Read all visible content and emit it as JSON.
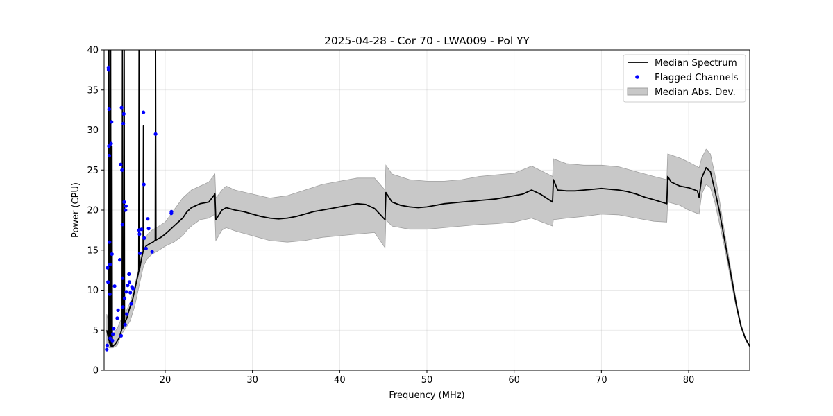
{
  "chart_data": {
    "type": "line",
    "title": "2025-04-28 - Cor 70 - LWA009 - Pol YY",
    "xlabel": "Frequency (MHz)",
    "ylabel": "Power (CPU)",
    "xlim": [
      13,
      87
    ],
    "ylim": [
      0,
      40
    ],
    "xticks": [
      20,
      30,
      40,
      50,
      60,
      70,
      80
    ],
    "yticks": [
      0,
      5,
      10,
      15,
      20,
      25,
      30,
      35,
      40
    ],
    "grid": true,
    "legend_position": "top-right",
    "colors": {
      "median": "#000000",
      "flagged": "#0000ff",
      "band_fill": "#c8c8c8",
      "band_edge": "#a0a0a0"
    },
    "series": [
      {
        "name": "Median Spectrum",
        "kind": "line",
        "x": [
          13.3,
          13.5,
          13.6,
          13.7,
          13.8,
          13.9,
          14.0,
          14.3,
          14.7,
          15.0,
          15.2,
          15.4,
          15.6,
          15.8,
          16.0,
          16.3,
          16.6,
          16.9,
          17.0,
          17.3,
          17.5,
          17.8,
          18.2,
          18.6,
          18.8,
          19.0,
          19.5,
          20.0,
          20.5,
          21.0,
          21.5,
          22.0,
          22.5,
          23.0,
          24.0,
          25.0,
          25.7,
          25.8,
          26.5,
          27.0,
          28.0,
          29.0,
          30.0,
          31.0,
          32.0,
          33.0,
          34.0,
          35.0,
          36.0,
          37.0,
          38.0,
          39.0,
          40.0,
          41.0,
          42.0,
          43.0,
          44.0,
          45.2,
          45.3,
          46.0,
          47.0,
          48.0,
          49.0,
          50.0,
          51.0,
          52.0,
          53.0,
          54.0,
          55.0,
          56.0,
          57.0,
          58.0,
          59.0,
          60.0,
          61.0,
          62.0,
          63.0,
          64.4,
          64.5,
          65.0,
          66.0,
          67.0,
          68.0,
          69.0,
          70.0,
          71.0,
          72.0,
          73.0,
          74.0,
          75.0,
          76.0,
          77.5,
          77.6,
          78.0,
          79.0,
          80.0,
          81.0,
          81.2,
          81.5,
          82.0,
          82.5,
          83.0,
          83.5,
          84.0,
          84.5,
          85.0,
          85.5,
          86.0,
          86.5,
          87.0
        ],
        "y": [
          5.0,
          4.0,
          3.5,
          3.2,
          3.0,
          3.0,
          3.0,
          3.3,
          4.0,
          5.0,
          5.5,
          6.0,
          6.5,
          7.3,
          8.0,
          9.0,
          10.5,
          12.0,
          12.5,
          14.0,
          15.0,
          15.5,
          15.8,
          16.0,
          16.2,
          16.3,
          16.6,
          17.0,
          17.5,
          18.0,
          18.5,
          19.0,
          19.8,
          20.3,
          20.8,
          21.0,
          22.0,
          18.8,
          20.0,
          20.3,
          20.0,
          19.8,
          19.5,
          19.2,
          19.0,
          18.9,
          19.0,
          19.2,
          19.5,
          19.8,
          20.0,
          20.2,
          20.4,
          20.6,
          20.8,
          20.7,
          20.2,
          18.8,
          22.2,
          21.0,
          20.6,
          20.4,
          20.3,
          20.4,
          20.6,
          20.8,
          20.9,
          21.0,
          21.1,
          21.2,
          21.3,
          21.4,
          21.6,
          21.8,
          22.0,
          22.5,
          22.0,
          21.0,
          23.8,
          22.5,
          22.4,
          22.4,
          22.5,
          22.6,
          22.7,
          22.6,
          22.5,
          22.3,
          22.0,
          21.6,
          21.3,
          20.8,
          24.2,
          23.5,
          23.0,
          22.8,
          22.4,
          21.6,
          24.0,
          25.3,
          24.8,
          22.5,
          20.0,
          17.0,
          14.0,
          11.0,
          8.0,
          5.5,
          4.0,
          3.0
        ],
        "spikes": [
          {
            "x": 13.55,
            "y": 40
          },
          {
            "x": 13.75,
            "y": 40
          },
          {
            "x": 13.9,
            "y": 28
          },
          {
            "x": 15.1,
            "y": 40
          },
          {
            "x": 15.3,
            "y": 40
          },
          {
            "x": 17.0,
            "y": 40
          },
          {
            "x": 17.5,
            "y": 30.5
          },
          {
            "x": 18.9,
            "y": 40
          }
        ]
      },
      {
        "name": "Flagged Channels",
        "kind": "scatter",
        "points": [
          {
            "x": 13.3,
            "y": 2.6
          },
          {
            "x": 13.35,
            "y": 3.1
          },
          {
            "x": 13.4,
            "y": 12.8
          },
          {
            "x": 13.45,
            "y": 11.0
          },
          {
            "x": 13.5,
            "y": 37.8
          },
          {
            "x": 13.52,
            "y": 37.5
          },
          {
            "x": 13.55,
            "y": 28.0
          },
          {
            "x": 13.58,
            "y": 32.6
          },
          {
            "x": 13.6,
            "y": 26.8
          },
          {
            "x": 13.62,
            "y": 16.0
          },
          {
            "x": 13.65,
            "y": 9.5
          },
          {
            "x": 13.68,
            "y": 13.2
          },
          {
            "x": 13.7,
            "y": 4.0
          },
          {
            "x": 13.8,
            "y": 28.3
          },
          {
            "x": 13.85,
            "y": 31.0
          },
          {
            "x": 13.9,
            "y": 14.5
          },
          {
            "x": 13.95,
            "y": 3.7
          },
          {
            "x": 14.0,
            "y": 4.5
          },
          {
            "x": 14.1,
            "y": 5.2
          },
          {
            "x": 14.2,
            "y": 10.5
          },
          {
            "x": 14.5,
            "y": 6.5
          },
          {
            "x": 14.6,
            "y": 7.5
          },
          {
            "x": 14.8,
            "y": 13.8
          },
          {
            "x": 14.9,
            "y": 25.7
          },
          {
            "x": 14.95,
            "y": 4.3
          },
          {
            "x": 15.0,
            "y": 32.8
          },
          {
            "x": 15.05,
            "y": 25.0
          },
          {
            "x": 15.1,
            "y": 18.2
          },
          {
            "x": 15.12,
            "y": 11.5
          },
          {
            "x": 15.15,
            "y": 7.9
          },
          {
            "x": 15.2,
            "y": 30.8
          },
          {
            "x": 15.25,
            "y": 32.0
          },
          {
            "x": 15.3,
            "y": 21.0
          },
          {
            "x": 15.35,
            "y": 9.0
          },
          {
            "x": 15.4,
            "y": 5.7
          },
          {
            "x": 15.45,
            "y": 20.0
          },
          {
            "x": 15.5,
            "y": 20.5
          },
          {
            "x": 15.55,
            "y": 9.8
          },
          {
            "x": 15.6,
            "y": 7.0
          },
          {
            "x": 15.7,
            "y": 10.6
          },
          {
            "x": 15.85,
            "y": 12.0
          },
          {
            "x": 15.9,
            "y": 11.0
          },
          {
            "x": 16.0,
            "y": 9.7
          },
          {
            "x": 16.1,
            "y": 8.3
          },
          {
            "x": 16.2,
            "y": 10.4
          },
          {
            "x": 16.3,
            "y": 10.2
          },
          {
            "x": 17.0,
            "y": 17.5
          },
          {
            "x": 17.05,
            "y": 17.0
          },
          {
            "x": 17.1,
            "y": 14.6
          },
          {
            "x": 17.3,
            "y": 17.6
          },
          {
            "x": 17.5,
            "y": 32.2
          },
          {
            "x": 17.55,
            "y": 23.2
          },
          {
            "x": 17.6,
            "y": 16.5
          },
          {
            "x": 17.8,
            "y": 15.2
          },
          {
            "x": 18.0,
            "y": 18.9
          },
          {
            "x": 18.1,
            "y": 17.7
          },
          {
            "x": 18.5,
            "y": 14.8
          },
          {
            "x": 18.9,
            "y": 29.5
          },
          {
            "x": 20.7,
            "y": 19.6
          },
          {
            "x": 20.72,
            "y": 19.8
          }
        ]
      },
      {
        "name": "Median Abs. Dev.",
        "kind": "band",
        "x": [
          13.3,
          13.6,
          14.0,
          14.5,
          15.0,
          15.5,
          16.0,
          16.5,
          17.0,
          17.5,
          18.0,
          18.5,
          19.0,
          20.0,
          21.0,
          22.0,
          22.5,
          23.0,
          24.0,
          25.0,
          25.7,
          25.8,
          26.5,
          27.0,
          28.0,
          30.0,
          32.0,
          34.0,
          36.0,
          38.0,
          40.0,
          42.0,
          44.0,
          45.2,
          45.3,
          46.0,
          48.0,
          50.0,
          52.0,
          54.0,
          56.0,
          58.0,
          60.0,
          62.0,
          64.4,
          64.5,
          66.0,
          68.0,
          70.0,
          72.0,
          74.0,
          76.0,
          77.5,
          77.6,
          79.0,
          80.0,
          81.2,
          81.5,
          82.0,
          82.5,
          83.0,
          83.5,
          84.0,
          84.5,
          85.0,
          85.5,
          86.0,
          86.5,
          87.0
        ],
        "lower": [
          3.0,
          2.8,
          2.8,
          3.1,
          4.5,
          5.3,
          6.2,
          8.0,
          10.5,
          13.0,
          14.0,
          14.5,
          14.8,
          15.5,
          16.0,
          16.8,
          17.5,
          18.0,
          18.8,
          19.0,
          19.5,
          16.2,
          17.5,
          17.8,
          17.4,
          16.8,
          16.2,
          16.0,
          16.2,
          16.6,
          16.8,
          17.0,
          17.2,
          15.3,
          18.8,
          18.0,
          17.6,
          17.6,
          17.8,
          18.0,
          18.2,
          18.3,
          18.5,
          19.0,
          18.0,
          18.8,
          19.0,
          19.2,
          19.5,
          19.4,
          19.0,
          18.6,
          18.5,
          21.0,
          20.6,
          20.0,
          19.5,
          22.0,
          23.2,
          22.8,
          21.0,
          18.5,
          16.0,
          13.2,
          10.3,
          7.6,
          5.3,
          3.8,
          2.9
        ],
        "upper": [
          7.0,
          5.5,
          4.5,
          5.2,
          6.5,
          7.3,
          8.5,
          10.5,
          13.0,
          16.0,
          17.0,
          17.5,
          17.8,
          18.5,
          20.0,
          21.5,
          22.0,
          22.5,
          23.0,
          23.5,
          24.5,
          21.5,
          22.5,
          23.0,
          22.5,
          22.0,
          21.5,
          21.8,
          22.5,
          23.2,
          23.6,
          24.0,
          24.0,
          22.5,
          25.6,
          24.5,
          23.8,
          23.6,
          23.6,
          23.8,
          24.2,
          24.4,
          24.6,
          25.5,
          24.2,
          26.4,
          25.8,
          25.6,
          25.6,
          25.4,
          24.8,
          24.2,
          23.8,
          27.0,
          26.5,
          26.0,
          25.3,
          26.5,
          27.6,
          27.0,
          24.5,
          21.5,
          18.0,
          14.8,
          11.6,
          8.4,
          5.8,
          4.1,
          3.1
        ]
      }
    ]
  }
}
